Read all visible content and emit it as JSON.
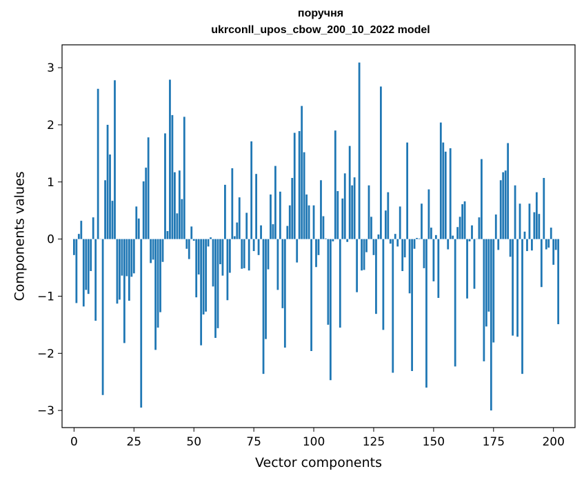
{
  "chart_data": {
    "type": "bar",
    "title_line1": "поручня",
    "title_line2": "ukrconll_upos_cbow_200_10_2022 model",
    "xlabel": "Vector components",
    "ylabel": "Components values",
    "xlim": [
      -5,
      209
    ],
    "ylim": [
      -3.3,
      3.4
    ],
    "xticks": [
      0,
      25,
      50,
      75,
      100,
      125,
      150,
      175,
      200
    ],
    "xtick_labels": [
      "0",
      "25",
      "50",
      "75",
      "100",
      "125",
      "150",
      "175",
      "200"
    ],
    "yticks": [
      -3,
      -2,
      -1,
      0,
      1,
      2,
      3
    ],
    "ytick_labels": [
      "−3",
      "−2",
      "−1",
      "0",
      "1",
      "2",
      "3"
    ],
    "grid": false,
    "bar_color": "#1f77b4",
    "values": [
      -0.28,
      -1.12,
      0.09,
      0.32,
      -1.18,
      -0.89,
      -0.96,
      -0.56,
      0.38,
      -1.43,
      2.63,
      0.0,
      -2.73,
      1.03,
      2.0,
      1.48,
      0.67,
      2.78,
      -1.13,
      -1.06,
      -0.64,
      -1.82,
      -0.65,
      -1.08,
      -0.66,
      -0.6,
      0.57,
      0.36,
      -2.95,
      1.01,
      1.25,
      1.78,
      -0.42,
      -0.36,
      -1.94,
      -1.55,
      -1.28,
      -0.4,
      1.85,
      0.14,
      2.79,
      2.17,
      1.17,
      0.45,
      1.2,
      0.7,
      2.14,
      -0.17,
      -0.35,
      0.22,
      -0.03,
      -1.02,
      -0.62,
      -1.86,
      -1.32,
      -1.27,
      -0.13,
      0.03,
      -0.83,
      -1.73,
      -1.56,
      -0.44,
      -0.64,
      0.95,
      -1.07,
      -0.59,
      1.24,
      0.05,
      0.29,
      0.73,
      -0.52,
      -0.51,
      0.46,
      -0.55,
      1.71,
      -0.21,
      1.14,
      -0.28,
      0.24,
      -2.36,
      -1.75,
      -0.53,
      0.78,
      0.26,
      1.28,
      -0.89,
      0.83,
      -1.21,
      -1.9,
      0.23,
      0.59,
      1.07,
      1.86,
      -0.41,
      1.89,
      2.33,
      1.52,
      0.78,
      0.59,
      -1.96,
      0.59,
      -0.49,
      -0.28,
      1.03,
      0.4,
      0.01,
      -1.5,
      -2.47,
      -0.04,
      1.9,
      0.84,
      -1.55,
      0.71,
      1.15,
      -0.05,
      1.63,
      0.94,
      1.08,
      -0.93,
      3.09,
      -0.55,
      -0.54,
      -0.23,
      0.94,
      0.39,
      -0.28,
      -1.31,
      0.08,
      2.67,
      -1.59,
      0.5,
      0.82,
      -0.08,
      -2.34,
      0.09,
      -0.13,
      0.57,
      -0.56,
      -0.32,
      1.69,
      -0.95,
      -2.31,
      -0.17,
      0.02,
      0.01,
      0.62,
      -0.51,
      -2.6,
      0.87,
      0.2,
      -0.74,
      0.07,
      -1.03,
      2.04,
      1.69,
      1.53,
      -0.18,
      1.59,
      0.06,
      -2.23,
      0.21,
      0.39,
      0.61,
      0.66,
      -1.04,
      -0.04,
      0.24,
      -0.87,
      0.0,
      0.38,
      1.4,
      -2.14,
      -1.53,
      -1.27,
      -3.0,
      -1.81,
      0.43,
      -0.19,
      1.03,
      1.17,
      1.2,
      1.68,
      -0.31,
      -1.69,
      0.94,
      -1.71,
      0.62,
      -2.36,
      0.13,
      -0.21,
      0.62,
      -0.2,
      0.47,
      0.82,
      0.44,
      -0.84,
      1.07,
      -0.18,
      -0.15,
      0.2,
      -0.45,
      -0.19,
      -1.49
    ]
  }
}
